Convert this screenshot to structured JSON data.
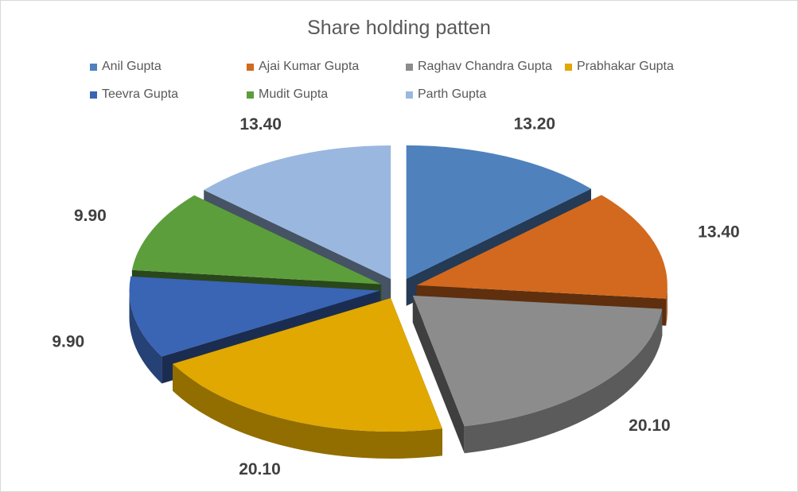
{
  "chart_data": {
    "type": "pie",
    "title": "Share holding patten",
    "style": "3d-exploded",
    "legend_position": "top",
    "slices": [
      {
        "name": "Anil Gupta",
        "value": 13.2,
        "label": "13.20",
        "color": "#4f81bd"
      },
      {
        "name": "Ajai Kumar Gupta",
        "value": 13.4,
        "label": "13.40",
        "color": "#d2691e"
      },
      {
        "name": "Raghav Chandra Gupta",
        "value": 20.1,
        "label": "20.10",
        "color": "#8c8c8c"
      },
      {
        "name": "Prabhakar Gupta",
        "value": 20.1,
        "label": "20.10",
        "color": "#e0a800"
      },
      {
        "name": "Teevra Gupta",
        "value": 9.9,
        "label": "9.90",
        "color": "#3a64b4"
      },
      {
        "name": "Mudit Gupta",
        "value": 9.9,
        "label": "9.90",
        "color": "#5c9e3c"
      },
      {
        "name": "Parth Gupta",
        "value": 13.4,
        "label": "13.40",
        "color": "#9ab8df"
      }
    ]
  }
}
